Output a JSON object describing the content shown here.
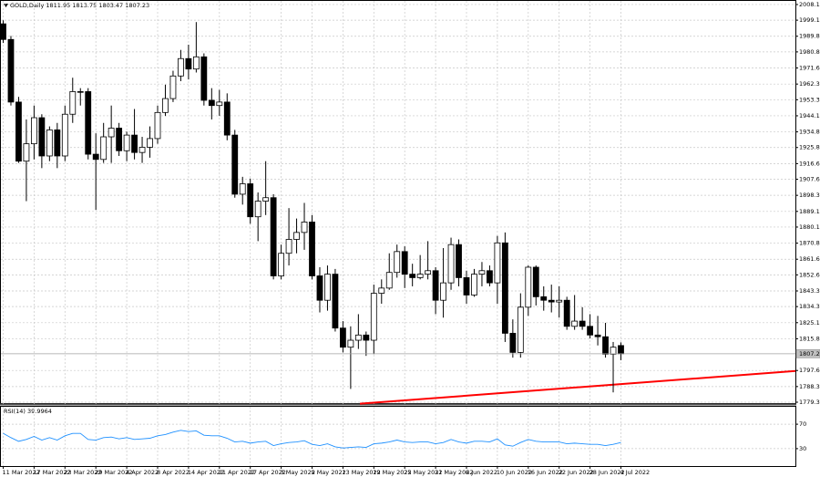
{
  "chart_data": [
    {
      "type": "candlestick",
      "title": "GOLD,Daily",
      "categories": [
        "11 Mar 2022",
        null,
        null,
        null,
        "17 Mar 2022",
        null,
        null,
        null,
        "23 Mar 2022",
        null,
        null,
        null,
        "29 Mar 2022",
        null,
        null,
        null,
        "4 Apr 2022",
        null,
        null,
        null,
        "8 Apr 2022",
        null,
        null,
        null,
        "14 Apr 2022",
        null,
        null,
        null,
        "21 Apr 2022",
        null,
        null,
        null,
        "27 Apr 2022",
        null,
        null,
        null,
        "3 May 2022",
        null,
        null,
        null,
        "9 May 2022",
        null,
        null,
        null,
        "13 May 2022",
        null,
        null,
        null,
        "19 May 2022",
        null,
        null,
        null,
        "25 May 2022",
        null,
        null,
        null,
        "31 May 2022",
        null,
        null,
        null,
        "6 Jun 2022",
        null,
        null,
        null,
        "10 Jun 2022",
        null,
        null,
        null,
        "16 Jun 2022",
        null,
        null,
        null,
        "22 Jun 2022",
        null,
        null,
        null,
        "28 Jun 2022",
        null,
        null,
        null,
        "4 Jul 2022"
      ],
      "open": [
        1997,
        1988,
        1952,
        1918,
        1928,
        1943,
        1921,
        1936,
        1921,
        1945,
        1958,
        1958,
        1922,
        1919,
        1932,
        1937,
        1924,
        1933,
        1923,
        1926,
        1931,
        1946,
        1954,
        1967,
        1977,
        1971,
        1978,
        1953,
        1950,
        1952,
        1933,
        1899,
        1905,
        1886,
        1895,
        1897,
        1852,
        1865,
        1873,
        1877,
        1883,
        1852,
        1838,
        1853,
        1822,
        1811,
        1815,
        1818,
        1815,
        1842,
        1845,
        1854,
        1866,
        1853,
        1851,
        1853,
        1855,
        1838,
        1848,
        1870,
        1851,
        1841,
        1853,
        1855,
        1848,
        1871,
        1819,
        1808,
        1834,
        1857,
        1840,
        1838,
        1837,
        1838,
        1823,
        1826,
        1823,
        1818,
        1817,
        1807,
        1811.95
      ],
      "high": [
        1999,
        1990,
        1955,
        1942,
        1950,
        1945,
        1938,
        1940,
        1950,
        1966,
        1960,
        1960,
        1934,
        1940,
        1950,
        1940,
        1935,
        1948,
        1932,
        1938,
        1950,
        1962,
        1970,
        1982,
        1985,
        1998,
        1980,
        1960,
        1959,
        1957,
        1936,
        1909,
        1908,
        1900,
        1918,
        1899,
        1870,
        1891,
        1885,
        1894,
        1887,
        1857,
        1858,
        1856,
        1826,
        1823,
        1830,
        1820,
        1847,
        1850,
        1865,
        1870,
        1869,
        1859,
        1864,
        1872,
        1857,
        1868,
        1874,
        1873,
        1855,
        1856,
        1860,
        1858,
        1875,
        1877,
        1827,
        1842,
        1858,
        1858,
        1846,
        1847,
        1846,
        1840,
        1841,
        1834,
        1830,
        1829,
        1825,
        1814,
        1813.75
      ],
      "low": [
        1986,
        1950,
        1917,
        1895,
        1919,
        1914,
        1918,
        1914,
        1918,
        1940,
        1950,
        1919,
        1890,
        1917,
        1917,
        1921,
        1918,
        1919,
        1917,
        1920,
        1928,
        1944,
        1952,
        1964,
        1965,
        1969,
        1950,
        1942,
        1944,
        1930,
        1897,
        1893,
        1882,
        1872,
        1887,
        1850,
        1850,
        1858,
        1865,
        1867,
        1850,
        1831,
        1832,
        1820,
        1808,
        1787,
        1810,
        1806,
        1807,
        1836,
        1844,
        1851,
        1845,
        1846,
        1850,
        1850,
        1830,
        1828,
        1844,
        1846,
        1836,
        1840,
        1846,
        1846,
        1836,
        1814,
        1805,
        1805,
        1829,
        1835,
        1832,
        1831,
        1828,
        1821,
        1821,
        1821,
        1816,
        1812,
        1805,
        1785,
        1803.47
      ],
      "close": [
        1988,
        1952,
        1918,
        1928,
        1943,
        1921,
        1936,
        1921,
        1945,
        1958,
        1958,
        1922,
        1919,
        1932,
        1937,
        1924,
        1933,
        1923,
        1926,
        1931,
        1946,
        1954,
        1967,
        1977,
        1971,
        1978,
        1953,
        1950,
        1952,
        1933,
        1899,
        1905,
        1886,
        1895,
        1897,
        1852,
        1865,
        1873,
        1877,
        1883,
        1852,
        1838,
        1853,
        1822,
        1811,
        1815,
        1818,
        1815,
        1842,
        1845,
        1854,
        1866,
        1853,
        1851,
        1853,
        1855,
        1838,
        1848,
        1870,
        1851,
        1841,
        1853,
        1855,
        1848,
        1871,
        1819,
        1808,
        1834,
        1857,
        1840,
        1838,
        1837,
        1838,
        1823,
        1826,
        1823,
        1818,
        1817,
        1807,
        1811,
        1807.23
      ],
      "up_color": "#ffffff",
      "down_color": "#000000",
      "ylim": [
        1778.3,
        2010.7
      ],
      "yticks": [
        {
          "value": 2008.1,
          "label": "2008.10"
        },
        {
          "value": 1999.1,
          "label": "1999.10"
        },
        1989.85,
        1980.85,
        {
          "value": 1971.6,
          "label": "1971.60"
        },
        1962.35,
        1953.35,
        {
          "value": 1944.1,
          "label": "1944.10"
        },
        1934.85,
        1925.85,
        {
          "value": 1916.6,
          "label": "1916.60"
        },
        {
          "value": 1907.6,
          "label": "1907.60"
        },
        1898.35,
        {
          "value": 1889.1,
          "label": "1889.10"
        },
        {
          "value": 1880.1,
          "label": "1880.10"
        },
        1870.85,
        {
          "value": 1861.6,
          "label": "1861.60"
        },
        {
          "value": 1852.6,
          "label": "1852.60"
        },
        1843.35,
        1834.35,
        {
          "value": 1825.1,
          "label": "1825.10"
        },
        1815.85,
        {
          "value": 1797.6,
          "label": "1797.60"
        },
        1788.35,
        1779.35
      ],
      "grid": true,
      "trendline": {
        "x": [
          46.2,
          102.6
        ],
        "y": [
          1778.5,
          1797.3
        ],
        "color": "#ff0000"
      }
    },
    {
      "type": "line",
      "title": "RSI(14)",
      "values": [
        55,
        48,
        42,
        45,
        50,
        44,
        48,
        44,
        51,
        55,
        55,
        45,
        44,
        48,
        49,
        46,
        48,
        45,
        46,
        47,
        51,
        53,
        57,
        60,
        58,
        59,
        52,
        51,
        51,
        47,
        41,
        42,
        39,
        41,
        42,
        35,
        38,
        40,
        41,
        43,
        37,
        35,
        38,
        33,
        31,
        32,
        33,
        32,
        38,
        39,
        41,
        44,
        41,
        40,
        41,
        41,
        38,
        40,
        45,
        41,
        39,
        42,
        42,
        41,
        46,
        36,
        34,
        40,
        45,
        42,
        41,
        41,
        41,
        38,
        39,
        38,
        37,
        37,
        35,
        37,
        39.9964
      ],
      "color": "#1e90ff",
      "ylim": [
        0,
        100
      ],
      "yticks": [
        70,
        30
      ]
    }
  ]
}
